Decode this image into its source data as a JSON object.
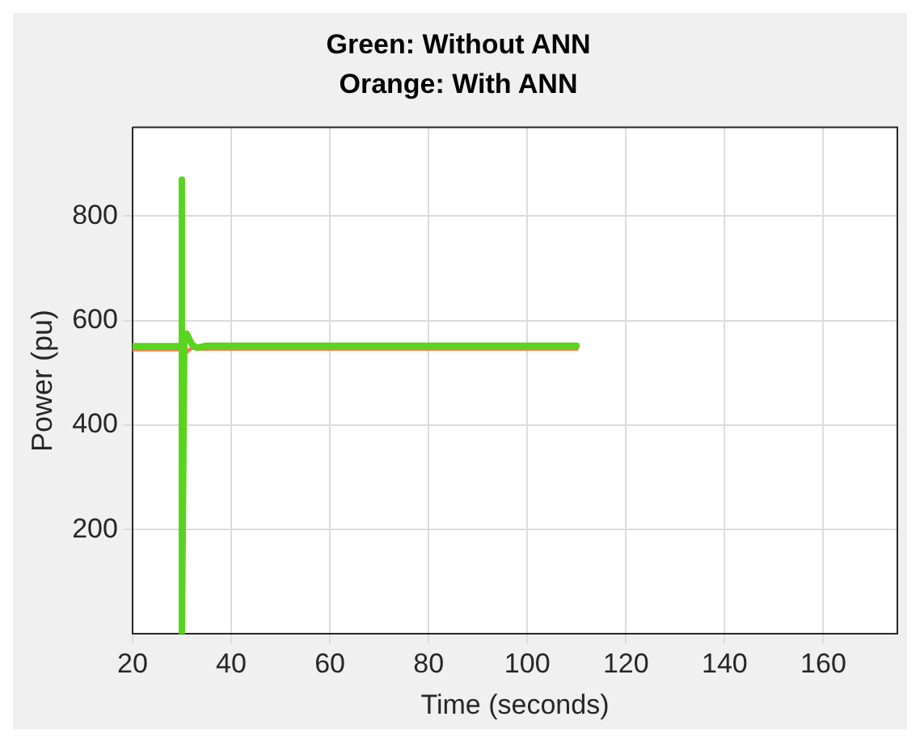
{
  "chart_data": {
    "type": "line",
    "title": "Green: Without ANN",
    "subtitle": "Orange: With ANN",
    "xlabel": "Time (seconds)",
    "ylabel": "Power (pu)",
    "xlim": [
      20,
      175
    ],
    "xticks": [
      20,
      40,
      60,
      80,
      100,
      120,
      140,
      160
    ],
    "ylim": [
      0,
      970
    ],
    "yticks": [
      200,
      400,
      600,
      800
    ],
    "grid": true,
    "legend": false,
    "marker": "none",
    "line_style": "solid",
    "series": [
      {
        "color": "#f08050",
        "x": [
          20,
          30,
          31,
          32,
          34,
          110
        ],
        "values": [
          545,
          545,
          540,
          548,
          546,
          546
        ]
      },
      {
        "color": "#5ad41e",
        "x": [
          20,
          30,
          30,
          30,
          30.5,
          31,
          32,
          33,
          35,
          110
        ],
        "values": [
          551,
          551,
          870,
          0,
          560,
          575,
          555,
          548,
          552,
          552
        ]
      }
    ]
  }
}
